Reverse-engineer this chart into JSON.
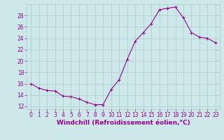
{
  "hours": [
    0,
    1,
    2,
    3,
    4,
    5,
    6,
    7,
    8,
    9,
    10,
    11,
    12,
    13,
    14,
    15,
    16,
    17,
    18,
    19,
    20,
    21,
    22,
    23
  ],
  "values": [
    16.0,
    15.2,
    14.8,
    14.7,
    13.8,
    13.7,
    13.3,
    12.7,
    12.3,
    12.3,
    15.0,
    16.7,
    20.3,
    23.5,
    25.0,
    26.6,
    29.0,
    29.3,
    29.5,
    27.6,
    25.0,
    24.2,
    24.0,
    23.2
  ],
  "line_color": "#990099",
  "marker": "+",
  "marker_size": 3.5,
  "marker_edge_width": 0.8,
  "line_width": 0.8,
  "bg_color": "#cce8e8",
  "grid_color": "#aacccc",
  "ylim": [
    11.5,
    30.0
  ],
  "xlim": [
    -0.5,
    23.5
  ],
  "yticks": [
    12,
    14,
    16,
    18,
    20,
    22,
    24,
    26,
    28
  ],
  "xticks": [
    0,
    1,
    2,
    3,
    4,
    5,
    6,
    7,
    8,
    9,
    10,
    11,
    12,
    13,
    14,
    15,
    16,
    17,
    18,
    19,
    20,
    21,
    22,
    23
  ],
  "xlabel": "Windchill (Refroidissement éolien,°C)",
  "xlabel_fontsize": 6.5,
  "tick_fontsize": 5.5,
  "label_color": "#990099"
}
